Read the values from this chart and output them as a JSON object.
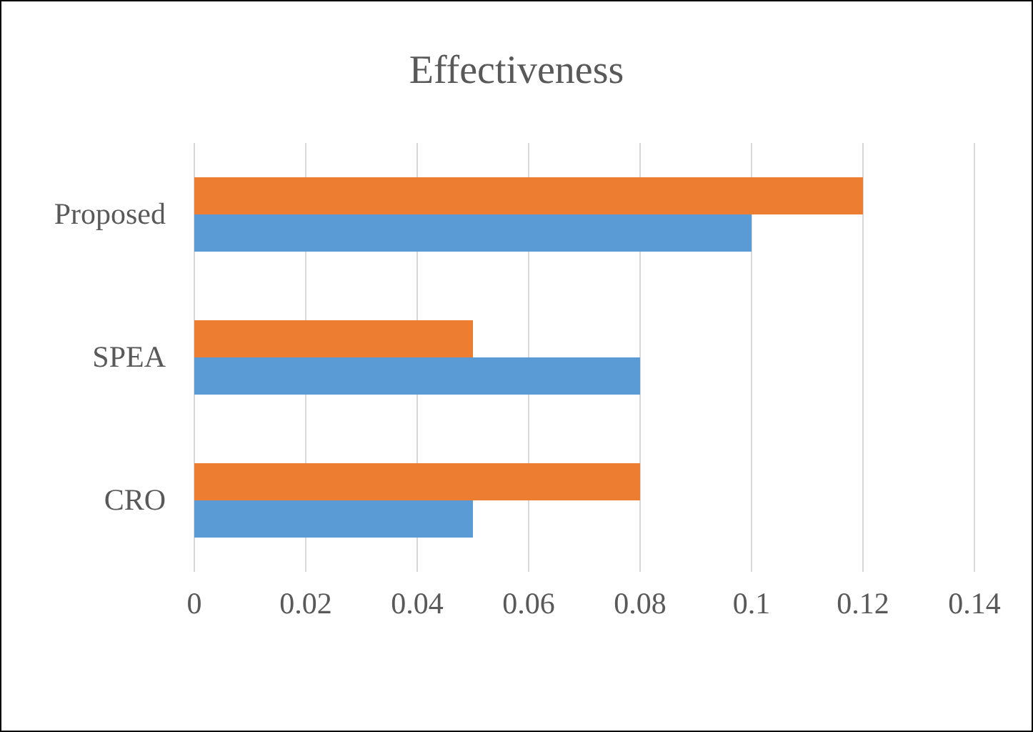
{
  "chart_data": {
    "type": "bar",
    "orientation": "horizontal",
    "title": "Effectiveness",
    "categories": [
      "Proposed",
      "SPEA",
      "CRO"
    ],
    "series": [
      {
        "color": "#ed7d31",
        "values": [
          0.12,
          0.05,
          0.08
        ]
      },
      {
        "color": "#5b9bd5",
        "values": [
          0.1,
          0.08,
          0.05
        ]
      }
    ],
    "xlim": [
      0,
      0.14
    ],
    "xticks": [
      0,
      0.02,
      0.04,
      0.06,
      0.08,
      0.1,
      0.12,
      0.14
    ],
    "grid": "x",
    "legend": false
  }
}
